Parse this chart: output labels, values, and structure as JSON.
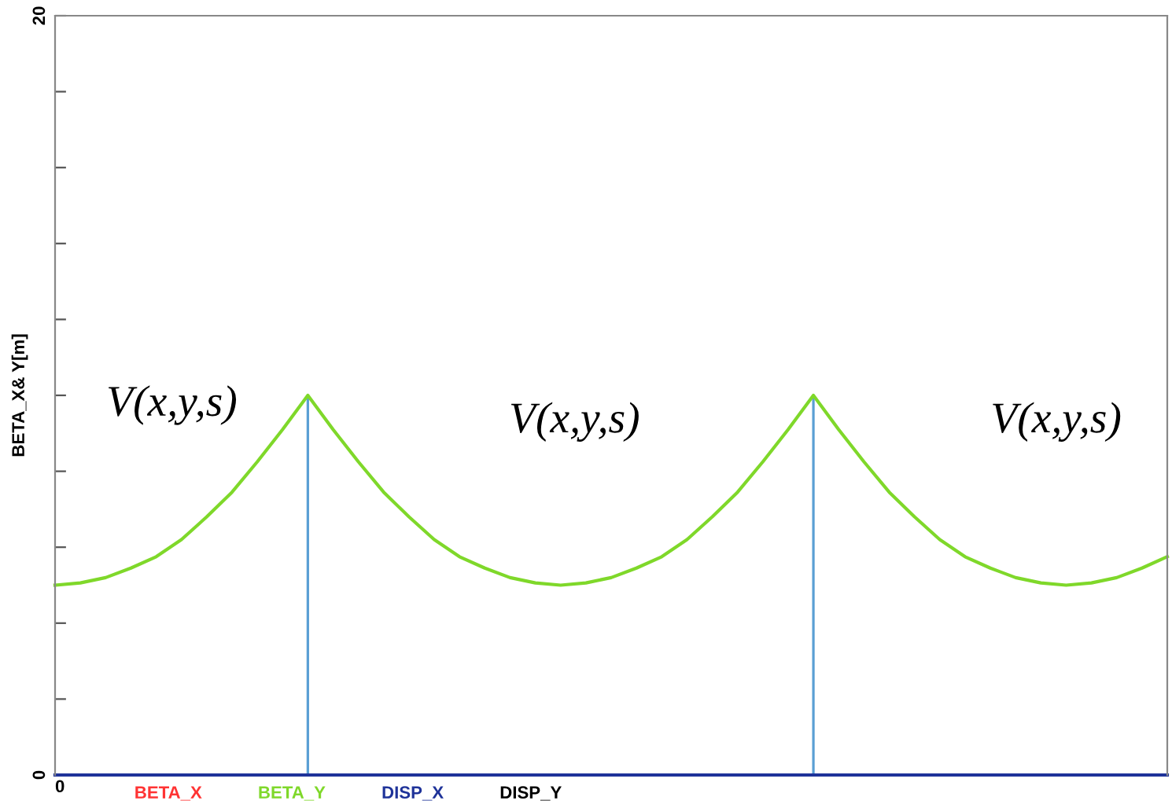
{
  "chart_data": {
    "type": "line",
    "ylabel": "BETA_X& Y[m]",
    "ylim": [
      0,
      20
    ],
    "yticks": [
      0,
      {
        "value": 2,
        "label": null
      },
      {
        "value": 4,
        "label": null
      },
      {
        "value": 6,
        "label": null
      },
      {
        "value": 8,
        "label": null
      },
      {
        "value": 10,
        "label": null
      },
      {
        "value": 12,
        "label": null
      },
      {
        "value": 14,
        "label": null
      },
      {
        "value": 16,
        "label": null
      },
      {
        "value": 18,
        "label": null
      },
      20
    ],
    "categories": [
      null,
      null,
      null,
      null,
      null,
      null,
      null,
      null,
      null,
      null,
      null,
      null,
      null,
      null,
      null,
      null,
      null,
      null,
      null,
      null,
      null,
      null,
      null,
      null,
      null,
      null,
      null,
      null,
      null,
      null,
      null,
      null,
      null,
      null,
      null,
      null,
      null,
      null,
      null,
      null,
      null,
      null,
      null,
      null,
      null
    ],
    "series": [
      {
        "name": "BETA_X",
        "color": "#ff3333",
        "values": [
          null,
          null,
          null,
          null,
          null,
          null,
          null,
          null,
          null,
          null,
          null,
          null,
          null,
          null,
          null,
          null,
          null,
          null,
          null,
          null,
          null,
          null,
          null,
          null,
          null,
          null,
          null,
          null,
          null,
          null,
          null,
          null,
          null,
          null,
          null,
          null,
          null,
          null,
          null,
          null,
          null,
          null,
          null,
          null,
          null
        ]
      },
      {
        "name": "BETA_Y",
        "color": "#7fd82a",
        "values": [
          5.0,
          5.06,
          5.2,
          5.45,
          5.75,
          6.2,
          6.8,
          7.45,
          8.25,
          9.1,
          10.0,
          9.1,
          8.25,
          7.45,
          6.8,
          6.2,
          5.75,
          5.45,
          5.2,
          5.06,
          5.0,
          5.06,
          5.2,
          5.45,
          5.75,
          6.2,
          6.8,
          7.45,
          8.25,
          9.1,
          10.0,
          9.1,
          8.25,
          7.45,
          6.8,
          6.2,
          5.75,
          5.45,
          5.2,
          5.06,
          5.0,
          5.06,
          5.2,
          5.45,
          5.75
        ]
      },
      {
        "name": "DISP_X",
        "color": "#1f3399",
        "values": [
          0,
          0,
          0,
          0,
          0,
          0,
          0,
          0,
          0,
          0,
          0,
          0,
          0,
          0,
          0,
          0,
          0,
          0,
          0,
          0,
          0,
          0,
          0,
          0,
          0,
          0,
          0,
          0,
          0,
          0,
          0,
          0,
          0,
          0,
          0,
          0,
          0,
          0,
          0,
          0,
          0,
          0,
          0,
          0,
          0
        ]
      },
      {
        "name": "DISP_Y",
        "color": "#000000",
        "values": [
          null,
          null,
          null,
          null,
          null,
          null,
          null,
          null,
          null,
          null,
          null,
          null,
          null,
          null,
          null,
          null,
          null,
          null,
          null,
          null,
          null,
          null,
          null,
          null,
          null,
          null,
          null,
          null,
          null,
          null,
          null,
          null,
          null,
          null,
          null,
          null,
          null,
          null,
          null,
          null,
          null,
          null,
          null,
          null,
          null
        ]
      },
      {
        "type": "bar",
        "color": "#5a9fd4",
        "values": [
          null,
          null,
          null,
          null,
          null,
          null,
          null,
          null,
          null,
          null,
          10.0,
          null,
          null,
          null,
          null,
          null,
          null,
          null,
          null,
          null,
          null,
          null,
          null,
          null,
          null,
          null,
          null,
          null,
          null,
          null,
          10.0,
          null,
          null,
          null,
          null,
          null,
          null,
          null,
          null,
          null,
          null,
          null,
          null,
          null,
          null
        ]
      }
    ],
    "annotations": [
      "0",
      "V(x,y,s)",
      "V(x,y,s)",
      "V(x,y,s)"
    ],
    "legend": "bottom",
    "grid": false,
    "marker": "none",
    "line_style": "solid"
  }
}
